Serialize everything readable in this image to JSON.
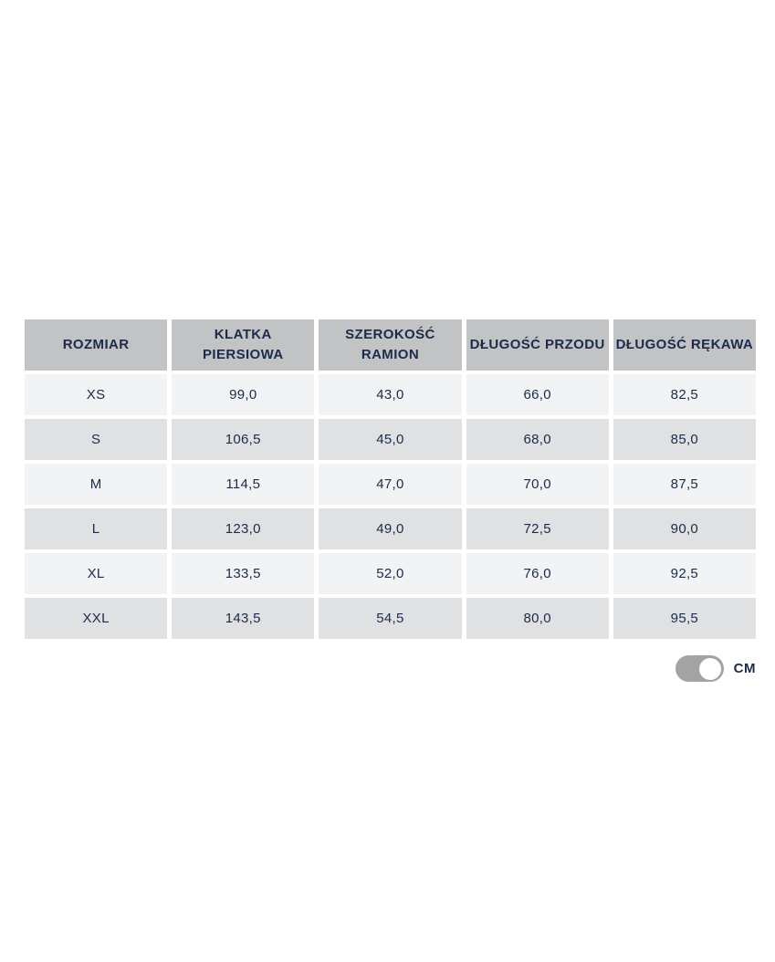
{
  "table": {
    "headers": [
      "ROZMIAR",
      "KLATKA\nPIERSIOWA",
      "SZEROKOŚĆ\nRAMION",
      "DŁUGOŚĆ PRZODU",
      "DŁUGOŚĆ RĘKAWA"
    ],
    "rows": [
      {
        "size": "XS",
        "chest": "99,0",
        "shoulders": "43,0",
        "front_length": "66,0",
        "sleeve_length": "82,5"
      },
      {
        "size": "S",
        "chest": "106,5",
        "shoulders": "45,0",
        "front_length": "68,0",
        "sleeve_length": "85,0"
      },
      {
        "size": "M",
        "chest": "114,5",
        "shoulders": "47,0",
        "front_length": "70,0",
        "sleeve_length": "87,5"
      },
      {
        "size": "L",
        "chest": "123,0",
        "shoulders": "49,0",
        "front_length": "72,5",
        "sleeve_length": "90,0"
      },
      {
        "size": "XL",
        "chest": "133,5",
        "shoulders": "52,0",
        "front_length": "76,0",
        "sleeve_length": "92,5"
      },
      {
        "size": "XXL",
        "chest": "143,5",
        "shoulders": "54,5",
        "front_length": "80,0",
        "sleeve_length": "95,5"
      }
    ]
  },
  "unit_toggle": {
    "label": "CM",
    "state": "on"
  },
  "colors": {
    "header_bg": "#c2c3c5",
    "row_light": "#f2f3f5",
    "row_dark": "#e0e1e3",
    "text": "#1c2b4a",
    "toggle_track": "#a1a3a5",
    "toggle_knob": "#ffffff"
  }
}
